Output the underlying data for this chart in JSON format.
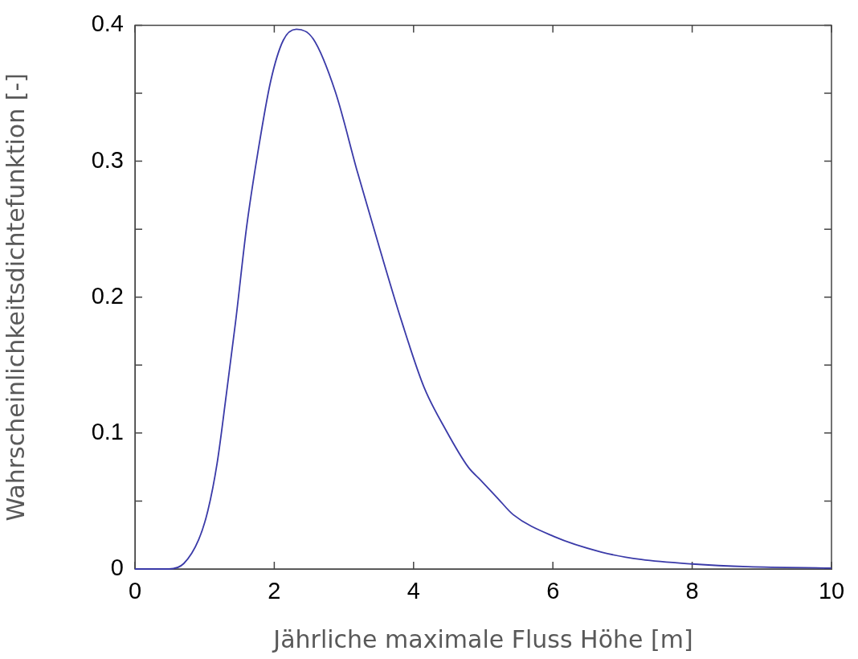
{
  "chart_data": {
    "type": "line",
    "xlabel": "Jährliche maximale Fluss Höhe [m]",
    "ylabel": "Wahrscheinlichkeitsdichtefunktion [-]",
    "x": [
      0,
      0.49,
      0.7,
      0.915,
      1.047,
      1.18,
      1.313,
      1.445,
      1.604,
      1.763,
      1.949,
      2.13,
      2.318,
      2.558,
      2.877,
      3.194,
      3.512,
      3.83,
      4.148,
      4.466,
      4.784,
      4.97,
      5.208,
      5.43,
      6.01,
      6.7,
      7.27,
      8.0,
      8.8,
      10
    ],
    "series": [
      {
        "color": "#3a3aa8",
        "values": [
          0,
          0,
          0.004,
          0.0216,
          0.043,
          0.078,
          0.129,
          0.182,
          0.252,
          0.306,
          0.359,
          0.389,
          0.397,
          0.39,
          0.351,
          0.292,
          0.236,
          0.182,
          0.134,
          0.102,
          0.075,
          0.065,
          0.052,
          0.04,
          0.024,
          0.0124,
          0.007,
          0.0037,
          0.0017,
          0.0007
        ]
      }
    ],
    "xlim": [
      0,
      10
    ],
    "xticks": [
      0,
      2,
      4,
      6,
      8,
      10
    ],
    "ylim": [
      0,
      0.4
    ],
    "yticks": [
      0,
      {
        "value": 0.05,
        "label": null
      },
      0.1,
      {
        "value": 0.15,
        "label": null
      },
      0.2,
      {
        "value": 0.25,
        "label": null
      },
      0.3,
      {
        "value": 0.35,
        "label": null
      },
      0.4
    ],
    "grid": false,
    "legend": false,
    "marker": "none",
    "line_style": "solid"
  }
}
